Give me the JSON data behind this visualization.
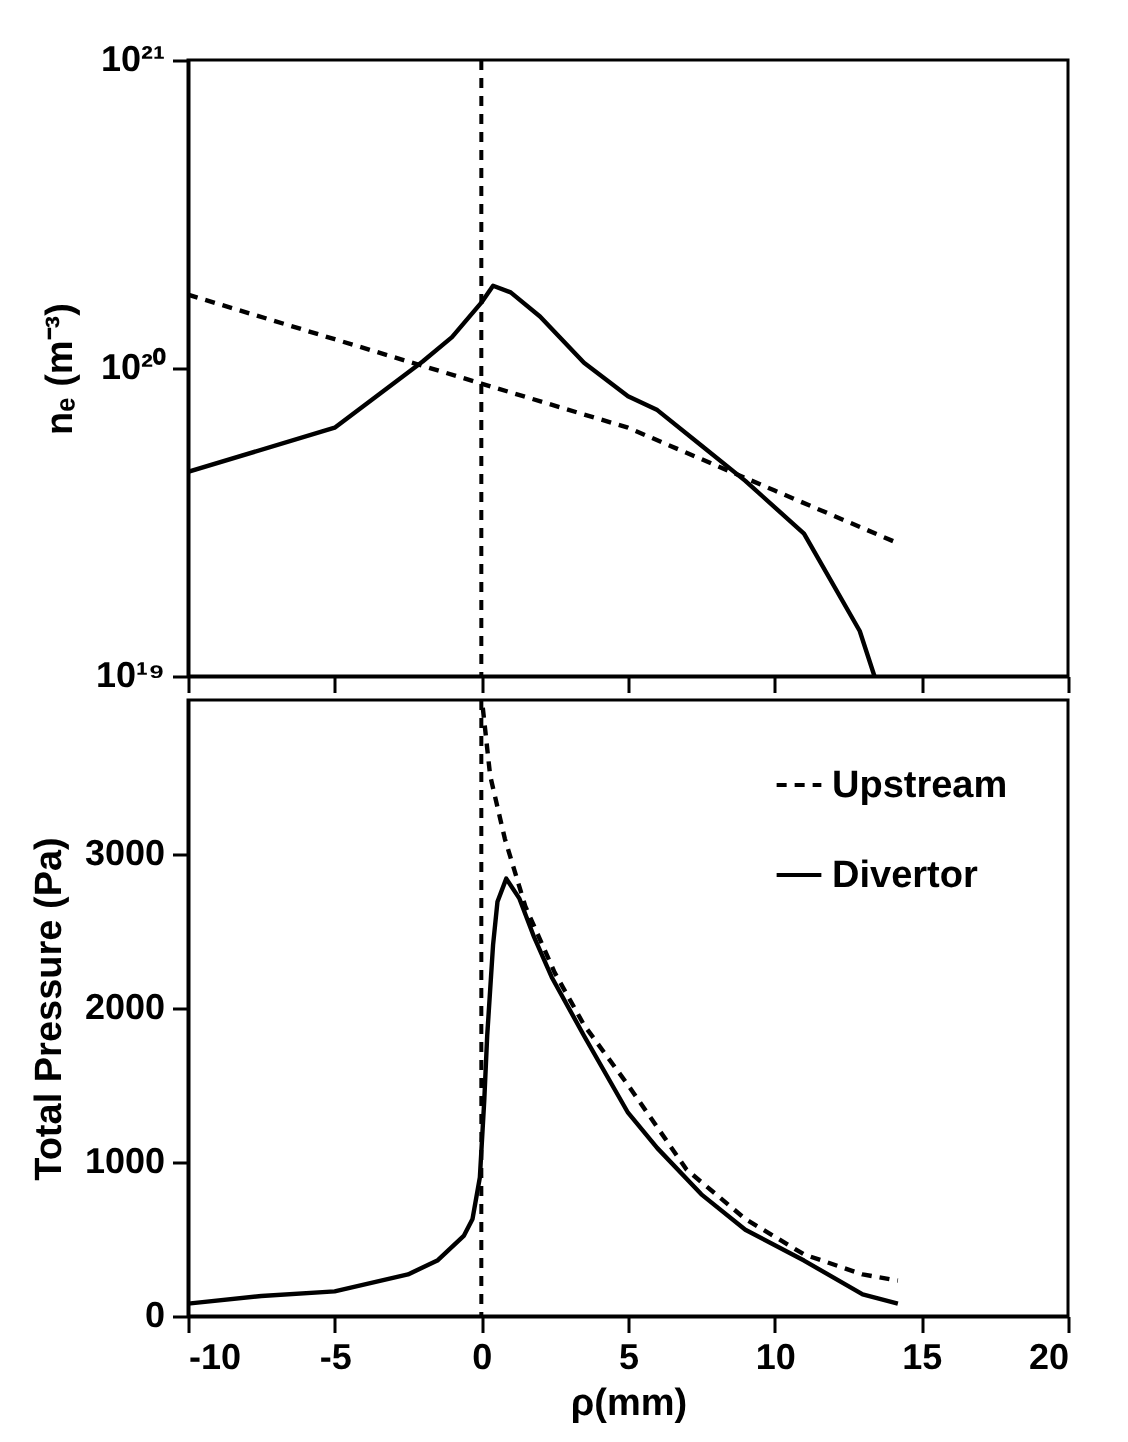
{
  "chart_data": [
    {
      "type": "line",
      "ylabel": "nₑ (m⁻³)",
      "log": "y",
      "xlim": [
        -10,
        20
      ],
      "xticks": [
        -10,
        -5,
        0,
        5,
        10,
        15,
        20
      ],
      "ylim": [
        1e+19,
        1e+21
      ],
      "yticks": [
        {
          "value": 1e+19,
          "label": "10¹⁹"
        },
        {
          "value": 1e+20,
          "label": "10²⁰"
        },
        {
          "value": 1e+21,
          "label": "10²¹"
        }
      ],
      "tick_labels": "y",
      "grid": false,
      "ref_lines": [
        {
          "axis": "x",
          "value": 0,
          "line_style": "dashed",
          "color": "#000000"
        }
      ],
      "series": [
        {
          "color": "#000000",
          "line_style": "dashed",
          "x": [
            -10,
            -5,
            0,
            5,
            10,
            14.2
          ],
          "values": [
            1.73e+20,
            1.24e+20,
            8.9e+19,
            6.4e+19,
            4e+19,
            2.7e+19
          ]
        },
        {
          "color": "#000000",
          "line_style": "solid",
          "x": [
            -10,
            -5,
            -2,
            -1,
            0,
            0.4,
            1,
            2,
            3.5,
            5,
            6,
            7.5,
            9,
            11,
            12.9,
            13.4
          ],
          "values": [
            4.6e+19,
            6.4e+19,
            1.05e+20,
            1.26e+20,
            1.63e+20,
            1.85e+20,
            1.76e+20,
            1.47e+20,
            1.04e+20,
            8.1e+19,
            7.3e+19,
            5.6e+19,
            4.3e+19,
            2.9e+19,
            1.4e+19,
            1e+19
          ]
        }
      ]
    },
    {
      "type": "line",
      "xlabel": "ρ(mm)",
      "ylabel": "Total Pressure (Pa)",
      "xlim": [
        -10,
        20
      ],
      "xticks": [
        -10,
        -5,
        0,
        5,
        10,
        15,
        20
      ],
      "ylim": [
        0,
        4000
      ],
      "yticks": [
        0,
        1000,
        2000,
        3000
      ],
      "grid": false,
      "legend": "top right",
      "ref_lines": [
        {
          "axis": "x",
          "value": 0,
          "line_style": "dashed",
          "color": "#000000"
        }
      ],
      "series": [
        {
          "name": "Upstream",
          "color": "#000000",
          "line_style": "dashed",
          "x": [
            0.05,
            0.3,
            0.8,
            1.5,
            2.5,
            3.5,
            5,
            7,
            9,
            11,
            13,
            14.2
          ],
          "values": [
            3950,
            3510,
            3100,
            2660,
            2230,
            1890,
            1500,
            950,
            630,
            400,
            270,
            230
          ]
        },
        {
          "name": "Divertor",
          "color": "#000000",
          "line_style": "solid",
          "x": [
            -10,
            -7.5,
            -5,
            -2.5,
            -1.5,
            -0.6,
            -0.3,
            -0.05,
            0.1,
            0.2,
            0.4,
            0.55,
            0.85,
            1.3,
            1.8,
            2.4,
            3.5,
            5,
            6,
            7.5,
            9,
            11,
            13,
            14.2
          ],
          "values": [
            80,
            130,
            160,
            270,
            360,
            520,
            630,
            900,
            1400,
            1820,
            2410,
            2690,
            2840,
            2710,
            2460,
            2200,
            1820,
            1320,
            1090,
            790,
            560,
            360,
            140,
            80
          ]
        }
      ]
    }
  ]
}
